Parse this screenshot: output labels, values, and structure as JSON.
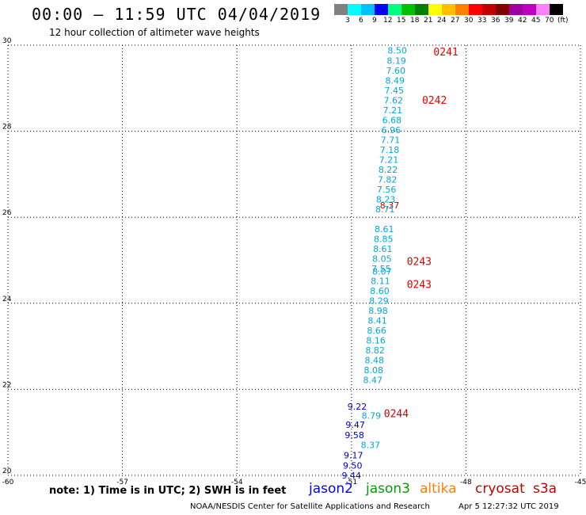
{
  "header": {
    "title": "00:00 – 11:59 UTC 04/04/2019",
    "subtitle": "12 hour collection of altimeter wave heights"
  },
  "legend": {
    "unit": "(ft)",
    "colors": [
      "#808080",
      "#00ffff",
      "#00c0ff",
      "#0000ff",
      "#00ff80",
      "#00c000",
      "#008000",
      "#ffff00",
      "#ffc000",
      "#ff8000",
      "#ff0000",
      "#c00000",
      "#800000",
      "#a000a0",
      "#c000c0",
      "#ff80ff",
      "#000000"
    ],
    "labels": [
      "3",
      "6",
      "9",
      "12",
      "15",
      "18",
      "21",
      "24",
      "27",
      "30",
      "33",
      "36",
      "39",
      "42",
      "45",
      "70"
    ]
  },
  "axes": {
    "x_ticks": [
      "-60",
      "-57",
      "-54",
      "-51",
      "-48",
      "-45"
    ],
    "y_ticks": [
      "20",
      "22",
      "24",
      "26",
      "28",
      "30"
    ]
  },
  "track_labels": [
    {
      "text": "0241",
      "lat": 29.85
    },
    {
      "text": "0242",
      "lat": 28.73
    },
    {
      "text": "0243",
      "lat": 24.98
    },
    {
      "text": "0243",
      "lat": 24.45
    },
    {
      "text": "0244",
      "lat": 21.45
    }
  ],
  "chart_data": {
    "type": "map",
    "xlim": [
      -60,
      -45
    ],
    "ylim": [
      20,
      30
    ],
    "grid": true,
    "units": "ft",
    "series": [
      {
        "name": "jason2",
        "color": "#0000c0",
        "points": [
          {
            "lon": -50.85,
            "lat": 21.6,
            "v": "9.22"
          },
          {
            "lon": -50.9,
            "lat": 21.18,
            "v": "9.47"
          },
          {
            "lon": -50.92,
            "lat": 20.94,
            "v": "9.58"
          },
          {
            "lon": -50.95,
            "lat": 20.47,
            "v": "9.17"
          },
          {
            "lon": -50.97,
            "lat": 20.23,
            "v": "9.50"
          },
          {
            "lon": -51.0,
            "lat": 20.0,
            "v": "9.44"
          }
        ]
      },
      {
        "name": "jason3",
        "color": "#00a000",
        "points": []
      },
      {
        "name": "altika",
        "color": "#ff8000",
        "points": []
      },
      {
        "name": "cryosat",
        "color": "#c00000",
        "points": [
          {
            "lon": -50.0,
            "lat": 26.28,
            "v": "8.37"
          }
        ]
      },
      {
        "name": "s3a",
        "color": "#00a8d8",
        "points": [
          {
            "lon": -49.8,
            "lat": 29.88,
            "v": "8.50"
          },
          {
            "lon": -49.82,
            "lat": 29.64,
            "v": "8.19"
          },
          {
            "lon": -49.84,
            "lat": 29.41,
            "v": "7.60"
          },
          {
            "lon": -49.86,
            "lat": 29.18,
            "v": "8.49"
          },
          {
            "lon": -49.88,
            "lat": 28.95,
            "v": "7.45"
          },
          {
            "lon": -49.9,
            "lat": 28.72,
            "v": "7.62"
          },
          {
            "lon": -49.92,
            "lat": 28.49,
            "v": "7.21"
          },
          {
            "lon": -49.94,
            "lat": 28.26,
            "v": "6.68"
          },
          {
            "lon": -49.96,
            "lat": 28.03,
            "v": "6.96"
          },
          {
            "lon": -49.98,
            "lat": 27.8,
            "v": "7.71"
          },
          {
            "lon": -50.0,
            "lat": 27.57,
            "v": "7.18"
          },
          {
            "lon": -50.02,
            "lat": 27.34,
            "v": "7.21"
          },
          {
            "lon": -50.04,
            "lat": 27.11,
            "v": "8.22"
          },
          {
            "lon": -50.06,
            "lat": 26.88,
            "v": "7.82"
          },
          {
            "lon": -50.08,
            "lat": 26.65,
            "v": "7.56"
          },
          {
            "lon": -50.1,
            "lat": 26.42,
            "v": "8.23"
          },
          {
            "lon": -50.12,
            "lat": 26.19,
            "v": "8.71"
          },
          {
            "lon": -50.14,
            "lat": 25.73,
            "v": "8.61"
          },
          {
            "lon": -50.16,
            "lat": 25.5,
            "v": "8.85"
          },
          {
            "lon": -50.18,
            "lat": 25.27,
            "v": "8.61"
          },
          {
            "lon": -50.2,
            "lat": 25.04,
            "v": "8.05"
          },
          {
            "lon": -50.22,
            "lat": 24.81,
            "v": "7.55"
          },
          {
            "lon": -50.2,
            "lat": 24.74,
            "v": "8.07"
          },
          {
            "lon": -50.24,
            "lat": 24.52,
            "v": "8.11"
          },
          {
            "lon": -50.26,
            "lat": 24.29,
            "v": "8.60"
          },
          {
            "lon": -50.28,
            "lat": 24.06,
            "v": "8.29"
          },
          {
            "lon": -50.3,
            "lat": 23.83,
            "v": "8.98"
          },
          {
            "lon": -50.32,
            "lat": 23.6,
            "v": "8.41"
          },
          {
            "lon": -50.34,
            "lat": 23.37,
            "v": "8.66"
          },
          {
            "lon": -50.36,
            "lat": 23.14,
            "v": "8.16"
          },
          {
            "lon": -50.38,
            "lat": 22.91,
            "v": "8.82"
          },
          {
            "lon": -50.4,
            "lat": 22.68,
            "v": "8.48"
          },
          {
            "lon": -50.42,
            "lat": 22.45,
            "v": "8.08"
          },
          {
            "lon": -50.44,
            "lat": 22.22,
            "v": "8.47"
          },
          {
            "lon": -50.48,
            "lat": 21.39,
            "v": "8.79"
          },
          {
            "lon": -50.5,
            "lat": 20.71,
            "v": "8.37"
          }
        ]
      }
    ]
  },
  "note": "note: 1) Time is in UTC; 2) SWH is in feet",
  "footer": {
    "org": "NOAA/NESDIS Center for Satellite Applications and Research",
    "timestamp": "Apr  5 12:27:32 UTC 2019"
  }
}
